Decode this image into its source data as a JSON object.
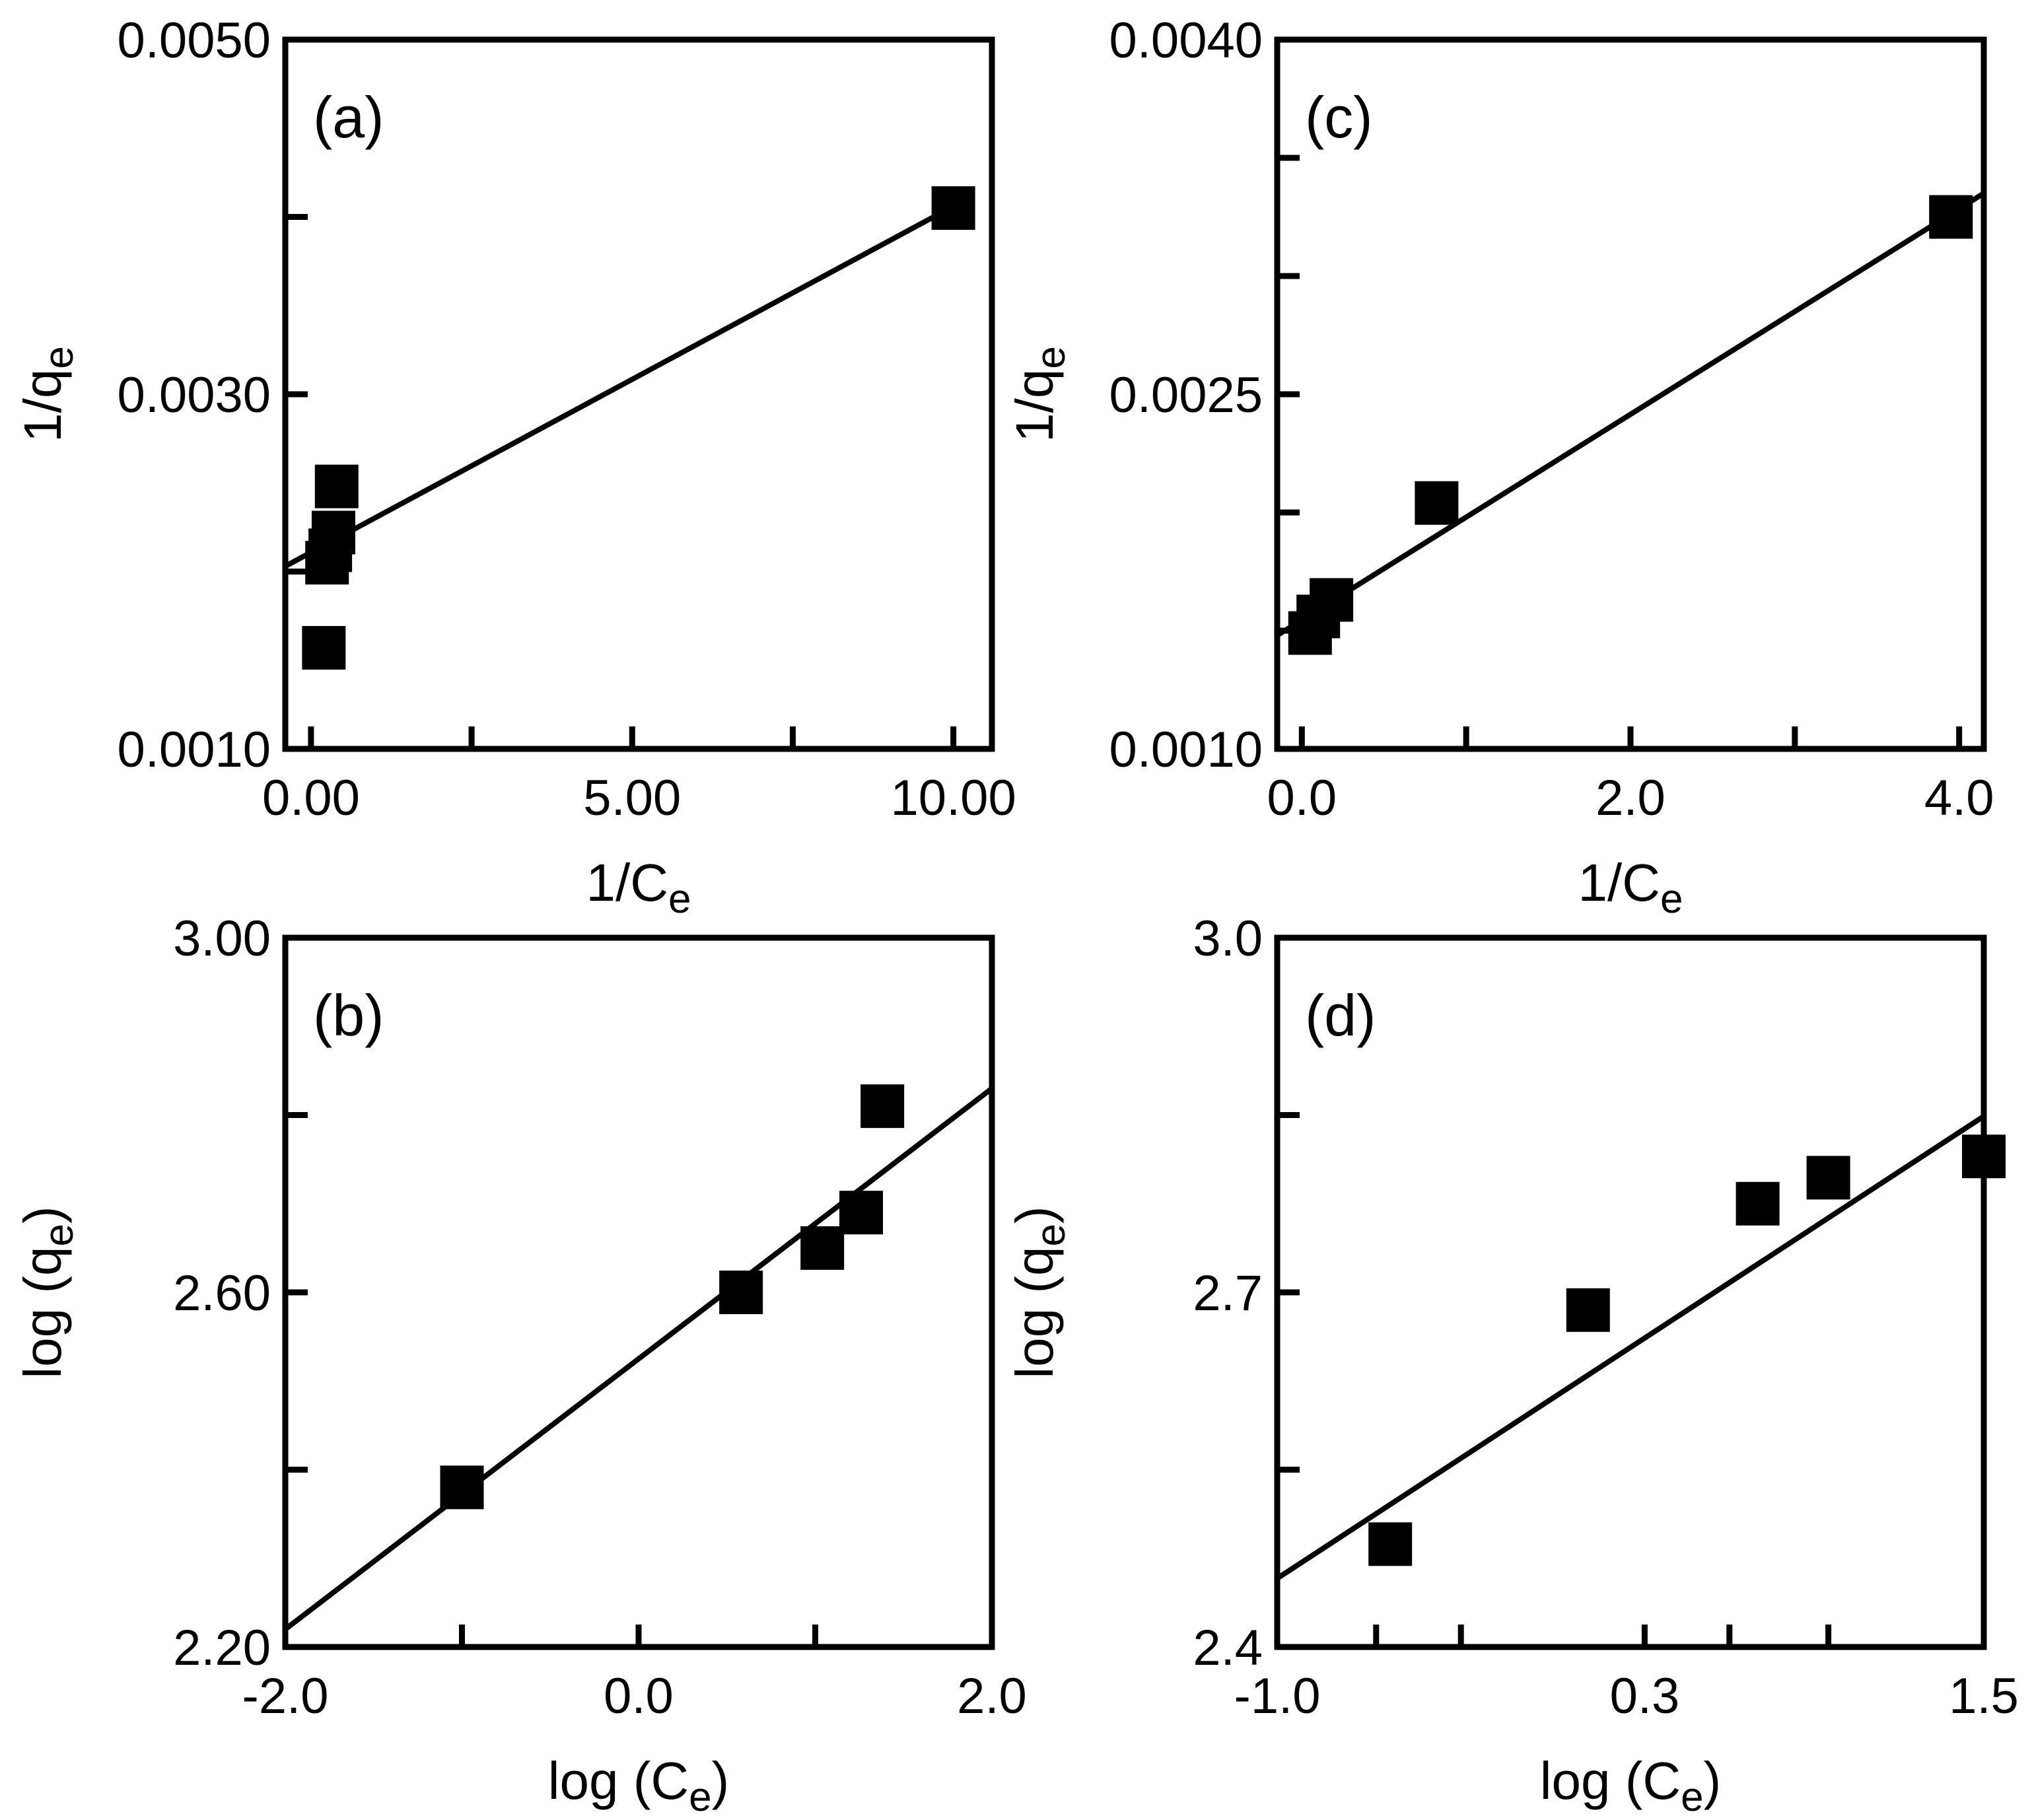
{
  "chart_data": [
    {
      "panel": "(a)",
      "type": "scatter",
      "title": "",
      "xlabel": "1/C",
      "xlabel_sub": "e",
      "ylabel": "1/q",
      "ylabel_sub": "e",
      "xlim": [
        -0.4,
        10.6
      ],
      "ylim": [
        0.001,
        0.005
      ],
      "xticks": [
        0,
        2.5,
        5,
        7.5,
        10
      ],
      "xticklabels": [
        "0.00",
        "",
        "5.00",
        "",
        "10.00"
      ],
      "yticks": [
        0.001,
        0.002,
        0.003,
        0.004,
        0.005
      ],
      "yticklabels": [
        "0.0010",
        "",
        "0.0030",
        "",
        "0.0050"
      ],
      "series": [
        {
          "name": "data",
          "x": [
            0.2,
            0.25,
            0.3,
            0.35,
            0.4
          ],
          "y": [
            0.00157,
            0.00205,
            0.00212,
            0.00222,
            0.00248
          ]
        },
        {
          "name": "linear fit",
          "type": "line",
          "x": [
            -0.4,
            10.0
          ],
          "y": [
            0.00203,
            0.00406
          ]
        }
      ],
      "extra_points": [
        {
          "x": 10.0,
          "y": 0.00405
        }
      ]
    },
    {
      "panel": "(b)",
      "type": "scatter",
      "title": "",
      "xlabel": "log (C",
      "xlabel_sub": "e",
      "xlabel_end": ")",
      "ylabel": "log (q",
      "ylabel_sub": "e",
      "ylabel_end": ")",
      "xlim": [
        -2.0,
        2.0
      ],
      "ylim": [
        2.2,
        3.0
      ],
      "xticks": [
        -2.0,
        -1.0,
        0.0,
        1.0,
        2.0
      ],
      "xticklabels": [
        "-2.0",
        "",
        "0.0",
        "",
        "2.0"
      ],
      "yticks": [
        2.2,
        2.4,
        2.6,
        2.8,
        3.0
      ],
      "yticklabels": [
        "2.20",
        "",
        "2.60",
        "",
        "3.00"
      ],
      "series": [
        {
          "name": "data",
          "x": [
            -1.0,
            0.58,
            1.04,
            1.26,
            1.38
          ],
          "y": [
            2.38,
            2.6,
            2.65,
            2.69,
            2.81
          ]
        },
        {
          "name": "linear fit",
          "type": "line",
          "x": [
            -2.0,
            2.0
          ],
          "y": [
            2.22,
            2.83
          ]
        }
      ]
    },
    {
      "panel": "(c)",
      "type": "scatter",
      "title": "",
      "xlabel": "1/C",
      "xlabel_sub": "e",
      "ylabel": "1/q",
      "ylabel_sub": "e",
      "xlim": [
        -0.15,
        4.15
      ],
      "ylim": [
        0.001,
        0.004
      ],
      "xticks": [
        0,
        1,
        2,
        3,
        4
      ],
      "xticklabels": [
        "0.0",
        "",
        "2.0",
        "",
        "4.0"
      ],
      "yticks": [
        0.001,
        0.0015,
        0.002,
        0.0025,
        0.003,
        0.0035,
        0.004
      ],
      "yticklabels": [
        "0.0010",
        "",
        "",
        "0.0025",
        "",
        "",
        "0.0040"
      ],
      "visible_yticks": [
        0.001,
        0.0025,
        0.004
      ],
      "minor_yticks": [
        0.0017,
        0.0032
      ],
      "series": [
        {
          "name": "data",
          "x": [
            0.05,
            0.1,
            0.18,
            0.82,
            3.95
          ],
          "y": [
            0.00149,
            0.00156,
            0.00163,
            0.00204,
            0.00325
          ]
        },
        {
          "name": "linear fit",
          "type": "line",
          "x": [
            -0.15,
            4.15
          ],
          "y": [
            0.00148,
            0.00335
          ]
        }
      ]
    },
    {
      "panel": "(d)",
      "type": "scatter",
      "title": "",
      "xlabel": "log (C",
      "xlabel_sub": "e",
      "xlabel_end": ")",
      "ylabel": "log (q",
      "ylabel_sub": "e",
      "ylabel_end": ")",
      "xlim": [
        -1.0,
        1.5
      ],
      "ylim": [
        2.4,
        3.0
      ],
      "xticks": [
        -1.0,
        -0.65,
        -0.35,
        0.3,
        0.6,
        0.95,
        1.5
      ],
      "xticklabels": [
        "-1.0",
        "",
        "",
        "0.3",
        "",
        "",
        "1.5"
      ],
      "yticks": [
        2.4,
        2.55,
        2.7,
        2.85,
        3.0
      ],
      "yticklabels": [
        "2.4",
        "",
        "2.7",
        "",
        "3.0"
      ],
      "series": [
        {
          "name": "data",
          "x": [
            -0.6,
            0.1,
            0.7,
            0.95,
            1.5
          ],
          "y": [
            2.487,
            2.685,
            2.775,
            2.797,
            2.815
          ]
        },
        {
          "name": "linear fit",
          "type": "line",
          "x": [
            -1.0,
            1.5
          ],
          "y": [
            2.458,
            2.849
          ]
        }
      ]
    }
  ]
}
